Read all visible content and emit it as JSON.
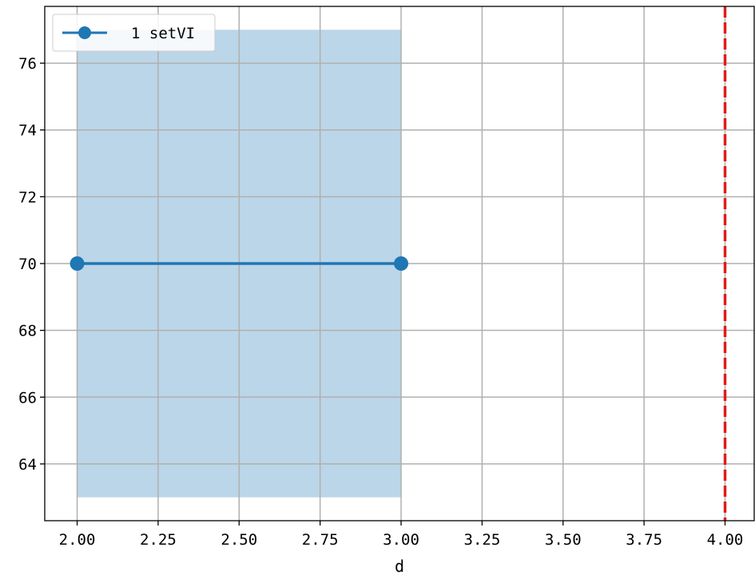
{
  "chart_data": {
    "type": "line",
    "title": "",
    "xlabel": "d",
    "ylabel": "",
    "xlim": [
      1.9,
      4.09
    ],
    "ylim": [
      62.3,
      77.7
    ],
    "xticks": [
      2.0,
      2.25,
      2.5,
      2.75,
      3.0,
      3.25,
      3.5,
      3.75,
      4.0
    ],
    "xtick_labels": [
      "2.00",
      "2.25",
      "2.50",
      "2.75",
      "3.00",
      "3.25",
      "3.50",
      "3.75",
      "4.00"
    ],
    "yticks": [
      64,
      66,
      68,
      70,
      72,
      74,
      76
    ],
    "ytick_labels": [
      "64",
      "66",
      "68",
      "70",
      "72",
      "74",
      "76"
    ],
    "grid": true,
    "legend_position": "top-left",
    "series": [
      {
        "name": "1 setVI",
        "x": [
          2.0,
          3.0
        ],
        "y": [
          70,
          70
        ],
        "color": "#1f77b4",
        "marker": "circle"
      }
    ],
    "band": {
      "x": [
        2.0,
        3.0
      ],
      "y_low": 63,
      "y_high": 77,
      "color": "#1f77b4",
      "opacity": 0.3
    },
    "reference_lines": [
      {
        "orientation": "vertical",
        "x": 4.0,
        "color": "#e31a1c",
        "style": "dashed"
      }
    ]
  }
}
